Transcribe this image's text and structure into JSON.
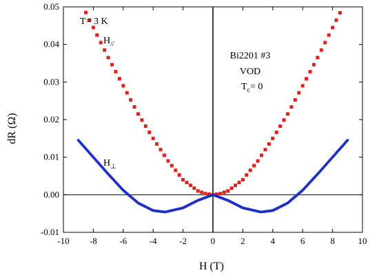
{
  "chart_data": {
    "type": "scatter",
    "xlabel": "H (T)",
    "ylabel": "dR (Ω)",
    "xlim": [
      -10,
      10
    ],
    "ylim": [
      -0.01,
      0.05
    ],
    "x_ticks": [
      "-10",
      "-8",
      "-6",
      "-4",
      "-2",
      "0",
      "2",
      "4",
      "6",
      "8",
      "10"
    ],
    "y_ticks": [
      "-0.01",
      "0.00",
      "0.01",
      "0.02",
      "0.03",
      "0.04",
      "0.05"
    ],
    "annotations": {
      "temperature": "T= 3 K",
      "sample": "Bi2201 #3",
      "condition": "VOD",
      "tc_main": "T",
      "tc_sub": "c",
      "tc_value": "= 0"
    },
    "series": [
      {
        "name": "H∥",
        "label_main": "H",
        "label_sub": "//",
        "color": "#e0211e",
        "x": [
          -9.0,
          -8.0,
          -7.0,
          -6.0,
          -5.0,
          -4.0,
          -3.0,
          -2.0,
          -1.0,
          -0.5,
          0.0,
          0.5,
          1.0,
          2.0,
          3.0,
          4.0,
          5.0,
          6.0,
          7.0,
          8.0,
          8.7
        ],
        "y": [
          0.0525,
          0.0445,
          0.0365,
          0.029,
          0.0215,
          0.015,
          0.009,
          0.004,
          0.001,
          0.0003,
          0.0,
          0.0003,
          0.001,
          0.004,
          0.009,
          0.015,
          0.0215,
          0.029,
          0.0365,
          0.0445,
          0.05
        ]
      },
      {
        "name": "H⊥",
        "label_main": "H",
        "label_sub": "⊥",
        "color": "#1f2fc4",
        "x": [
          -9.0,
          -8.0,
          -7.0,
          -6.0,
          -5.0,
          -4.0,
          -3.2,
          -2.0,
          -1.0,
          0.0,
          1.0,
          2.0,
          3.2,
          4.0,
          5.0,
          6.0,
          7.0,
          8.0,
          9.0
        ],
        "y": [
          0.0145,
          0.01,
          0.0055,
          0.0012,
          -0.0022,
          -0.0042,
          -0.0046,
          -0.0035,
          -0.0015,
          0.0,
          -0.0015,
          -0.0035,
          -0.0046,
          -0.0042,
          -0.0022,
          0.0012,
          0.0055,
          0.01,
          0.0145
        ]
      }
    ]
  }
}
